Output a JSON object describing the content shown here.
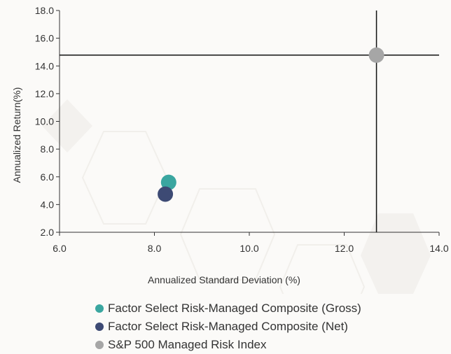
{
  "chart_data": {
    "type": "scatter",
    "xlabel": "Annualized Standard Deviation (%)",
    "ylabel": "Annualized Return(%)",
    "xlim": [
      6.0,
      14.0
    ],
    "ylim": [
      2.0,
      18.0
    ],
    "x_ticks": [
      "6.0",
      "8.0",
      "10.0",
      "12.0",
      "14.0"
    ],
    "y_ticks": [
      "2.0",
      "4.0",
      "6.0",
      "8.0",
      "10.0",
      "12.0",
      "14.0",
      "16.0",
      "18.0"
    ],
    "reference_lines": {
      "x": 12.68,
      "y": 14.78
    },
    "grid": false,
    "legend_position": "bottom",
    "series": [
      {
        "name": "Factor Select Risk-Managed Composite (Gross)",
        "color": "#3aa6a0",
        "x": 8.3,
        "y": 5.6
      },
      {
        "name": "Factor Select Risk-Managed Composite (Net)",
        "color": "#3d4a74",
        "x": 8.23,
        "y": 4.75
      },
      {
        "name": "S&P 500 Managed Risk Index",
        "color": "#a6a6a6",
        "x": 12.68,
        "y": 14.78
      }
    ]
  }
}
